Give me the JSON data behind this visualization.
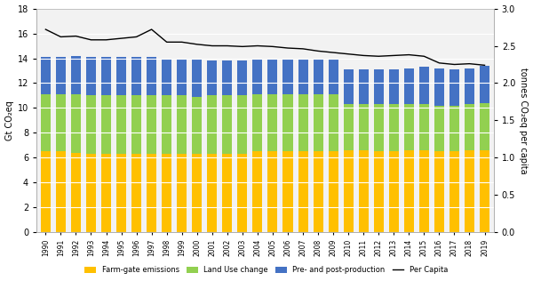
{
  "years": [
    1990,
    1991,
    1992,
    1993,
    1994,
    1995,
    1996,
    1997,
    1998,
    1999,
    2000,
    2001,
    2002,
    2003,
    2004,
    2005,
    2006,
    2007,
    2008,
    2009,
    2010,
    2011,
    2012,
    2013,
    2014,
    2015,
    2016,
    2017,
    2018,
    2019
  ],
  "farm_gate": [
    6.5,
    6.5,
    6.4,
    6.3,
    6.3,
    6.3,
    6.3,
    6.3,
    6.3,
    6.3,
    6.3,
    6.3,
    6.3,
    6.3,
    6.5,
    6.5,
    6.5,
    6.5,
    6.5,
    6.5,
    6.6,
    6.6,
    6.5,
    6.5,
    6.6,
    6.6,
    6.5,
    6.5,
    6.6,
    6.6
  ],
  "land_use": [
    4.6,
    4.6,
    4.7,
    4.7,
    4.7,
    4.7,
    4.7,
    4.7,
    4.7,
    4.7,
    4.6,
    4.7,
    4.7,
    4.7,
    4.6,
    4.6,
    4.6,
    4.6,
    4.6,
    4.6,
    3.7,
    3.7,
    3.8,
    3.8,
    3.7,
    3.7,
    3.7,
    3.7,
    3.7,
    3.8
  ],
  "pre_post": [
    3.0,
    3.0,
    3.1,
    3.1,
    3.1,
    3.1,
    3.1,
    3.1,
    3.0,
    3.0,
    3.0,
    2.8,
    2.8,
    2.8,
    2.9,
    2.9,
    2.9,
    2.9,
    2.8,
    2.9,
    2.8,
    2.8,
    2.8,
    2.8,
    2.9,
    3.0,
    3.0,
    2.9,
    2.9,
    3.0
  ],
  "per_capita": [
    2.72,
    2.62,
    2.63,
    2.58,
    2.58,
    2.6,
    2.62,
    2.72,
    2.55,
    2.55,
    2.52,
    2.5,
    2.5,
    2.49,
    2.5,
    2.49,
    2.47,
    2.46,
    2.43,
    2.41,
    2.39,
    2.37,
    2.36,
    2.37,
    2.38,
    2.36,
    2.27,
    2.25,
    2.26,
    2.24
  ],
  "farm_color": "#FFC000",
  "land_color": "#92D050",
  "pre_color": "#4472C4",
  "per_capita_color": "#000000",
  "ylim_left": [
    0,
    18
  ],
  "ylim_right": [
    0,
    3
  ],
  "yticks_left": [
    0,
    2,
    4,
    6,
    8,
    10,
    12,
    14,
    16,
    18
  ],
  "yticks_right": [
    0,
    0.5,
    1,
    1.5,
    2,
    2.5,
    3
  ],
  "ylabel_left": "Gt CO₂eq",
  "ylabel_right": "tonnes CO₂eq per capita",
  "legend_labels": [
    "Farm-gate emissions",
    "Land Use change",
    "Pre- and post-production",
    "Per Capita"
  ],
  "bg_color": "#FFFFFF",
  "plot_bg_color": "#F2F2F2",
  "grid_color": "#FFFFFF"
}
